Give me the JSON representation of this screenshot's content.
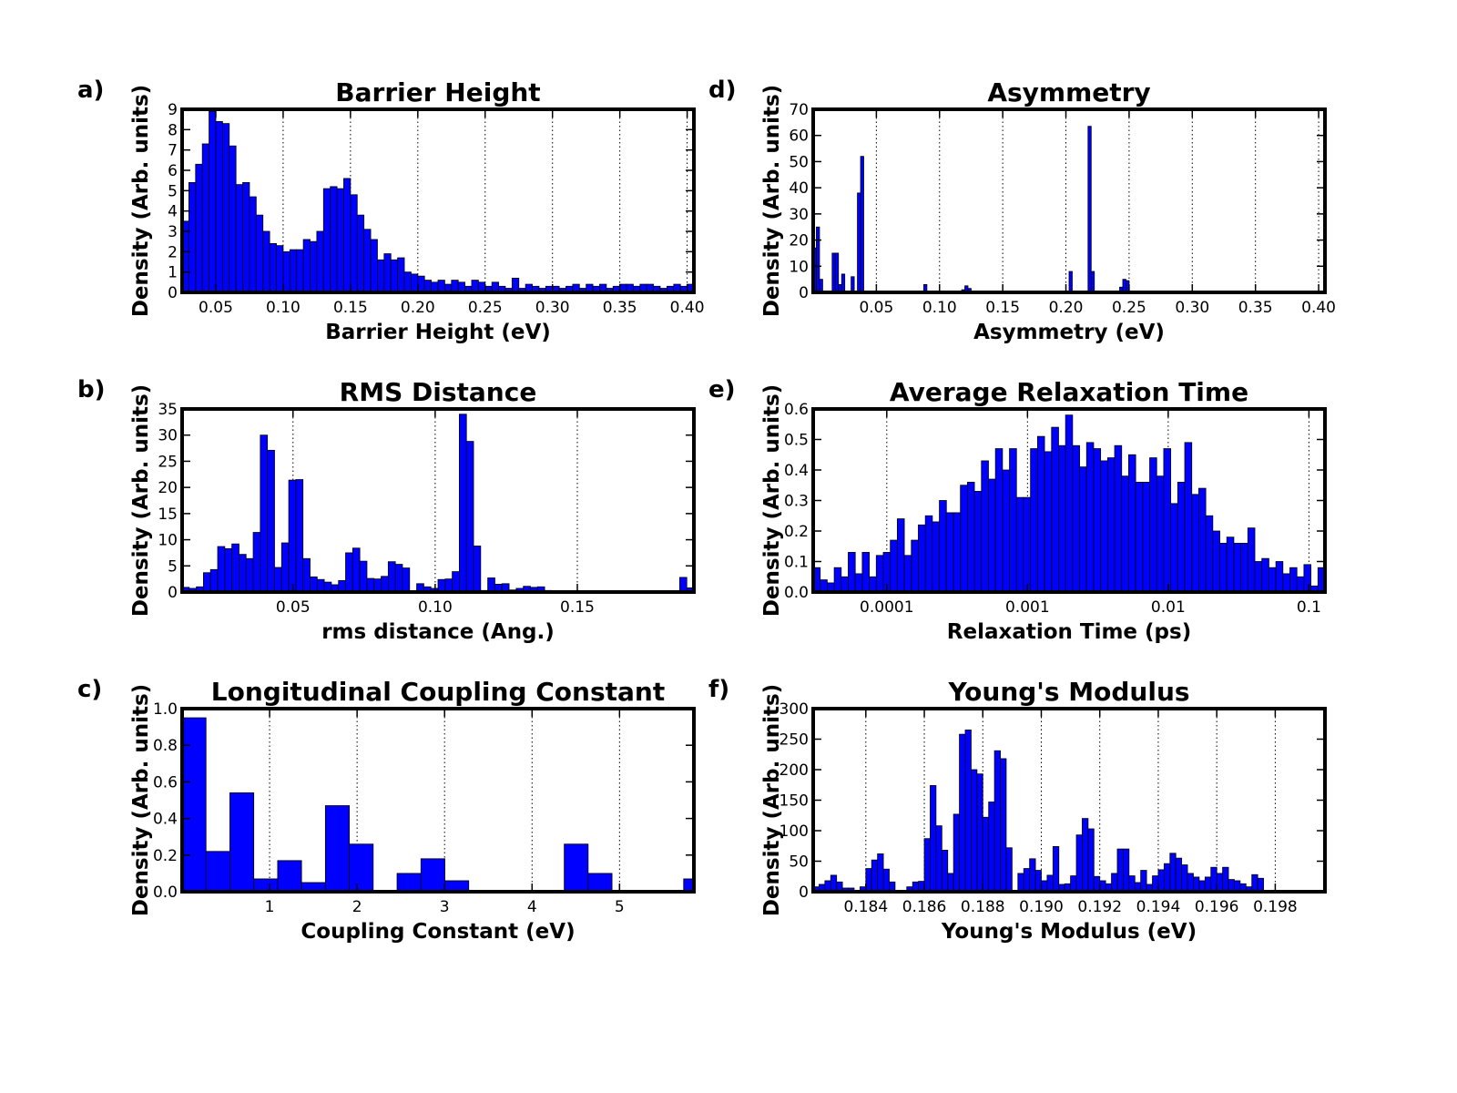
{
  "chart_data": [
    {
      "panel_label": "a)",
      "type": "bar",
      "title": "Barrier Height",
      "xlabel": "Barrier Height (eV)",
      "ylabel": "Density (Arb. units)",
      "xlim": [
        0.025,
        0.405
      ],
      "ylim": [
        0,
        9
      ],
      "x_ticks": [
        0.05,
        0.1,
        0.15,
        0.2,
        0.25,
        0.3,
        0.35,
        0.4
      ],
      "x_tick_labels": [
        "0.05",
        "0.10",
        "0.15",
        "0.20",
        "0.25",
        "0.30",
        "0.35",
        "0.40"
      ],
      "y_ticks": [
        0,
        1,
        2,
        3,
        4,
        5,
        6,
        7,
        8,
        9
      ],
      "y_tick_labels": [
        "0",
        "1",
        "2",
        "3",
        "4",
        "5",
        "6",
        "7",
        "8",
        "9"
      ],
      "grid": "x",
      "bin_start": 0.025,
      "bin_width": 0.005,
      "values": [
        3.5,
        5.4,
        6.3,
        7.3,
        8.9,
        8.4,
        8.3,
        7.2,
        5.3,
        5.4,
        4.7,
        3.8,
        3.0,
        2.4,
        2.3,
        2.0,
        2.1,
        2.1,
        2.6,
        2.5,
        3.0,
        5.1,
        5.2,
        5.1,
        5.6,
        4.8,
        3.8,
        3.1,
        2.6,
        1.6,
        1.9,
        1.6,
        1.7,
        1.0,
        0.9,
        0.8,
        0.6,
        0.5,
        0.6,
        0.4,
        0.6,
        0.5,
        0.3,
        0.6,
        0.5,
        0.3,
        0.5,
        0.3,
        0.2,
        0.7,
        0.2,
        0.4,
        0.3,
        0.2,
        0.3,
        0.3,
        0.2,
        0.3,
        0.4,
        0.2,
        0.4,
        0.3,
        0.4,
        0.2,
        0.3,
        0.4,
        0.4,
        0.3,
        0.4,
        0.4,
        0.3,
        0.2,
        0.3,
        0.4,
        0.3,
        0.4
      ]
    },
    {
      "panel_label": "b)",
      "type": "bar",
      "title": "RMS Distance",
      "xlabel": "rms distance (Ang.)",
      "ylabel": "Density (Arb. units)",
      "xlim": [
        0.011,
        0.191
      ],
      "ylim": [
        0,
        35
      ],
      "x_ticks": [
        0.05,
        0.1,
        0.15
      ],
      "x_tick_labels": [
        "0.05",
        "0.10",
        "0.15"
      ],
      "y_ticks": [
        0,
        5,
        10,
        15,
        20,
        25,
        30,
        35
      ],
      "y_tick_labels": [
        "0",
        "5",
        "10",
        "15",
        "20",
        "25",
        "30",
        "35"
      ],
      "grid": "x",
      "bin_start": 0.011,
      "bin_width": 0.0025,
      "values": [
        0.9,
        0.7,
        1.0,
        3.7,
        4.3,
        8.7,
        8.3,
        9.2,
        7.2,
        6.4,
        11.4,
        30.0,
        27.1,
        4.7,
        9.4,
        21.4,
        21.5,
        6.4,
        2.9,
        2.4,
        1.9,
        1.4,
        2.2,
        7.5,
        8.4,
        5.9,
        2.6,
        2.5,
        3.0,
        5.8,
        5.3,
        4.6,
        0.2,
        1.6,
        1.0,
        0.7,
        2.4,
        2.5,
        3.9,
        34.0,
        28.8,
        8.8,
        0.3,
        2.7,
        1.5,
        1.6,
        0.4,
        0.7,
        1.1,
        0.9,
        1.0,
        0.3,
        0.2,
        0.2,
        0.2,
        0.2,
        0.2,
        0.2,
        0.2,
        0.2,
        0.2,
        0.2,
        0.2,
        0.2,
        0.2,
        0.2,
        0.2,
        0.2,
        0.2,
        0.2,
        2.8,
        0.8
      ]
    },
    {
      "panel_label": "c)",
      "type": "bar",
      "title": "Longitudinal Coupling Constant",
      "xlabel": "Coupling Constant (eV)",
      "ylabel": "Density (Arb. units)",
      "xlim": [
        0.0,
        5.85
      ],
      "ylim": [
        0,
        1.0
      ],
      "x_ticks": [
        1,
        2,
        3,
        4,
        5
      ],
      "x_tick_labels": [
        "1",
        "2",
        "3",
        "4",
        "5"
      ],
      "y_ticks": [
        0.0,
        0.2,
        0.4,
        0.6,
        0.8,
        1.0
      ],
      "y_tick_labels": [
        "0.0",
        "0.2",
        "0.4",
        "0.6",
        "0.8",
        "1.0"
      ],
      "grid": "x",
      "bin_start": 0.0,
      "bin_width": 0.273,
      "values": [
        0.95,
        0.22,
        0.54,
        0.07,
        0.17,
        0.05,
        0.47,
        0.26,
        0.0,
        0.1,
        0.18,
        0.06,
        0.0,
        0.0,
        0.0,
        0.0,
        0.26,
        0.1,
        0.0,
        0.0,
        0.0,
        0.07
      ]
    },
    {
      "panel_label": "d)",
      "type": "bar",
      "title": "Asymmetry",
      "xlabel": "Asymmetry (eV)",
      "ylabel": "Density (Arb. units)",
      "xlim": [
        0.0,
        0.405
      ],
      "ylim": [
        0,
        70
      ],
      "x_ticks": [
        0.05,
        0.1,
        0.15,
        0.2,
        0.25,
        0.3,
        0.35,
        0.4
      ],
      "x_tick_labels": [
        "0.05",
        "0.10",
        "0.15",
        "0.20",
        "0.25",
        "0.30",
        "0.35",
        "0.40"
      ],
      "y_ticks": [
        0,
        10,
        20,
        30,
        40,
        50,
        60,
        70
      ],
      "y_tick_labels": [
        "0",
        "10",
        "20",
        "30",
        "40",
        "50",
        "60",
        "70"
      ],
      "grid": "x",
      "bin_start": 0.0,
      "bin_width": 0.0025,
      "values": [
        17.0,
        25.0,
        5.0,
        0.5,
        0.5,
        0.5,
        15.0,
        15.0,
        3.0,
        7.0,
        0.5,
        0.5,
        6.0,
        0.5,
        38.0,
        52.0,
        0.5,
        0.5,
        0.5,
        0.5,
        0.5,
        0.5,
        0.5,
        0.5,
        0.5,
        0.5,
        0.5,
        0.5,
        0.5,
        0.5,
        0.5,
        0.5,
        0.5,
        0.5,
        0.5,
        3.0,
        0.5,
        0.5,
        0.5,
        0.5,
        0.5,
        0.5,
        0.5,
        0.5,
        0.5,
        0.5,
        0.5,
        1.0,
        2.5,
        1.5,
        0.5,
        0.5,
        0.5,
        0.5,
        0.5,
        0.5,
        0.5,
        0.5,
        0.5,
        0.5,
        0.5,
        0.5,
        0.5,
        0.5,
        0.5,
        0.5,
        0.5,
        0.5,
        0.5,
        0.5,
        0.5,
        0.5,
        0.5,
        0.5,
        0.5,
        0.5,
        0.5,
        0.5,
        0.5,
        0.5,
        0.5,
        0.5,
        0.5,
        0.5,
        0.5,
        0.5,
        0.5,
        0.5,
        0.5,
        0.5,
        0.5,
        0.5,
        0.5,
        0.5,
        0.5,
        0.5,
        0.5,
        0.5,
        0.5,
        0.5,
        0.5,
        0.5,
        0.5,
        0.5,
        0.5,
        0.5,
        0.5,
        0.5,
        0.5,
        0.5,
        0.5,
        0.5,
        0.5,
        0.5,
        0.5,
        0.5,
        0.5,
        0.5,
        0.5,
        0.5,
        0.5,
        0.5,
        0.5,
        0.5,
        0.5,
        0.5,
        0.5,
        0.5,
        0.5,
        0.5,
        0.5,
        0.5,
        0.5,
        0.5,
        0.5,
        0.5,
        0.5,
        0.5,
        0.5,
        0.5,
        0.5,
        0.5,
        0.5,
        0.5,
        0.5,
        0.5,
        0.5,
        0.5,
        0.5,
        0.5
      ],
      "overrides": {
        "81": 8.0,
        "87": 63.5,
        "88": 8.0,
        "97": 2.0,
        "98": 5.0,
        "99": 4.5
      }
    },
    {
      "panel_label": "e)",
      "type": "bar",
      "title": "Average Relaxation Time",
      "xlabel": "Relaxation Time (ps)",
      "ylabel": "Density (Arb. units)",
      "xscale": "log",
      "xlim": [
        3e-05,
        0.13
      ],
      "ylim": [
        0,
        0.6
      ],
      "x_ticks": [
        0.0001,
        0.001,
        0.01,
        0.1
      ],
      "x_tick_labels": [
        "0.0001",
        "0.001",
        "0.01",
        "0.1"
      ],
      "y_ticks": [
        0.0,
        0.1,
        0.2,
        0.3,
        0.4,
        0.5,
        0.6
      ],
      "y_tick_labels": [
        "0.0",
        "0.1",
        "0.2",
        "0.3",
        "0.4",
        "0.5",
        "0.6"
      ],
      "grid": "x",
      "values": [
        0.08,
        0.04,
        0.03,
        0.08,
        0.05,
        0.13,
        0.06,
        0.13,
        0.05,
        0.12,
        0.13,
        0.17,
        0.24,
        0.12,
        0.17,
        0.22,
        0.25,
        0.23,
        0.3,
        0.26,
        0.26,
        0.35,
        0.36,
        0.33,
        0.43,
        0.37,
        0.47,
        0.4,
        0.47,
        0.31,
        0.31,
        0.47,
        0.51,
        0.46,
        0.54,
        0.48,
        0.58,
        0.48,
        0.41,
        0.49,
        0.47,
        0.43,
        0.44,
        0.48,
        0.38,
        0.45,
        0.36,
        0.36,
        0.44,
        0.38,
        0.47,
        0.29,
        0.36,
        0.49,
        0.32,
        0.34,
        0.25,
        0.2,
        0.16,
        0.18,
        0.16,
        0.16,
        0.21,
        0.1,
        0.11,
        0.08,
        0.1,
        0.06,
        0.08,
        0.05,
        0.09,
        0.02,
        0.08
      ]
    },
    {
      "panel_label": "f)",
      "type": "bar",
      "title": "Young's Modulus",
      "xlabel": "Young's Modulus (eV)",
      "ylabel": "Density (Arb. units)",
      "xlim": [
        0.1822,
        0.1997
      ],
      "ylim": [
        0,
        300
      ],
      "x_ticks": [
        0.184,
        0.186,
        0.188,
        0.19,
        0.192,
        0.194,
        0.196,
        0.198
      ],
      "x_tick_labels": [
        "0.184",
        "0.186",
        "0.188",
        "0.190",
        "0.192",
        "0.194",
        "0.196",
        "0.198"
      ],
      "y_ticks": [
        0,
        50,
        100,
        150,
        200,
        250,
        300
      ],
      "y_tick_labels": [
        "0",
        "50",
        "100",
        "150",
        "200",
        "250",
        "300"
      ],
      "grid": "x",
      "bin_start": 0.1822,
      "bin_width": 0.0002,
      "values": [
        8,
        12,
        18,
        27,
        16,
        6,
        6,
        2,
        8,
        38,
        52,
        62,
        37,
        16,
        2,
        2,
        8,
        16,
        17,
        87,
        174,
        108,
        68,
        30,
        127,
        258,
        265,
        200,
        193,
        122,
        147,
        231,
        218,
        72,
        2,
        30,
        38,
        54,
        35,
        18,
        27,
        74,
        12,
        13,
        26,
        93,
        120,
        103,
        25,
        18,
        13,
        30,
        70,
        70,
        26,
        15,
        35,
        12,
        26,
        36,
        46,
        63,
        55,
        44,
        30,
        24,
        18,
        24,
        40,
        30,
        40,
        20,
        18,
        13,
        8,
        28,
        22
      ]
    }
  ],
  "colors": {
    "bar_fill": "#0000ff",
    "bar_edge": "#000000",
    "axes_frame": "#000000",
    "grid": "#000000"
  }
}
